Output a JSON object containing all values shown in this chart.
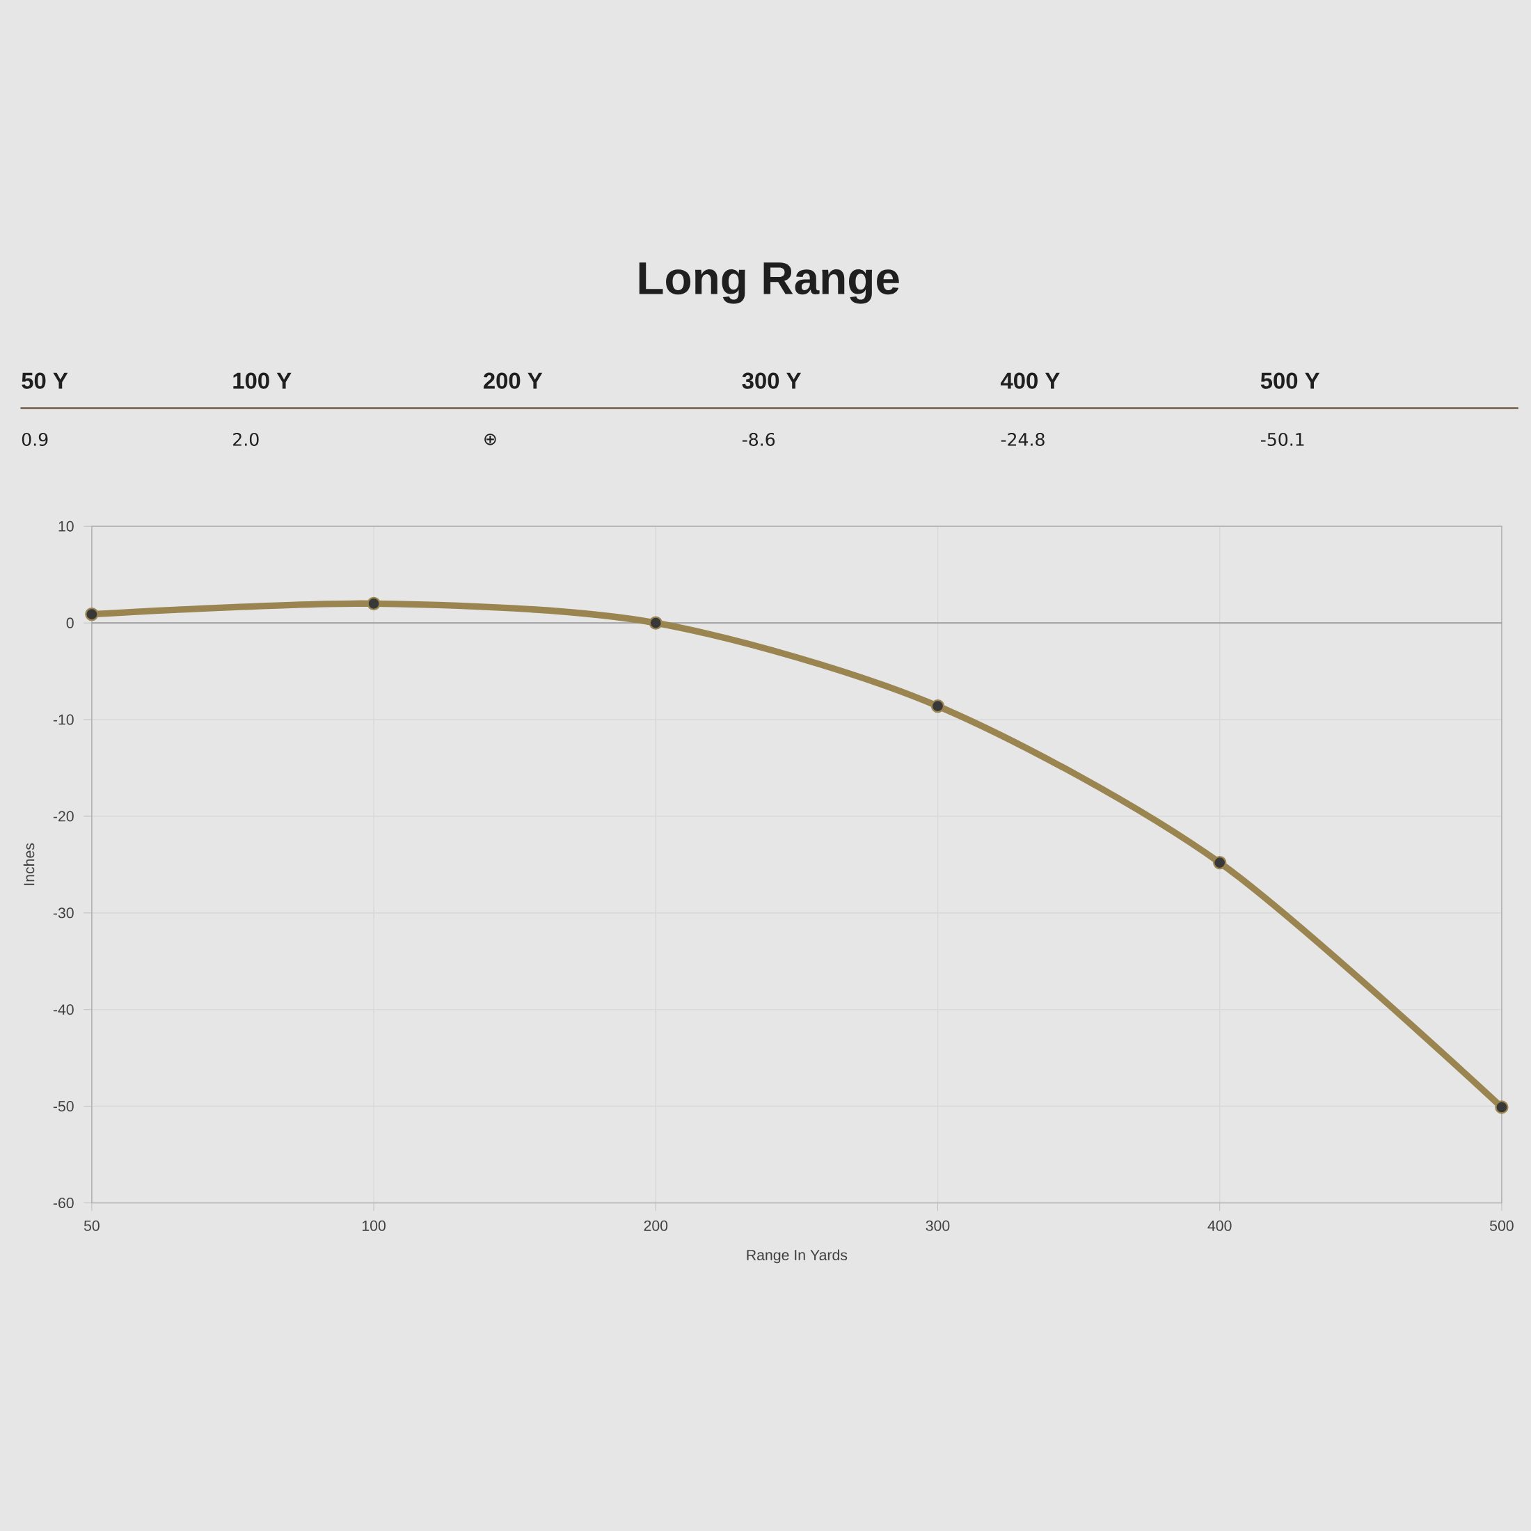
{
  "chart_data": {
    "type": "line",
    "title": "Long Range",
    "xlabel": "Range In Yards",
    "ylabel": "Inches",
    "categories": [
      "50",
      "100",
      "200",
      "300",
      "400",
      "500"
    ],
    "series": [
      {
        "color": "#9a844f",
        "values": [
          0.9,
          2.0,
          0,
          -8.6,
          -24.8,
          -50.1
        ]
      }
    ],
    "annotations": [
      "50 Y",
      "100 Y",
      "200 Y",
      "300 Y",
      "400 Y",
      "500 Y",
      "0.9",
      "2.0",
      "⊕",
      "-8.6",
      "-24.8",
      "-50.1"
    ],
    "ylim": [
      -60,
      10
    ],
    "yticks": [
      -60,
      -50,
      -40,
      -30,
      -20,
      -10,
      0,
      10
    ],
    "ref_lines": [
      {
        "axis": "y",
        "value": 0,
        "color": "#999999"
      }
    ],
    "grid": true,
    "marker": "circle",
    "line_style": "solid"
  }
}
